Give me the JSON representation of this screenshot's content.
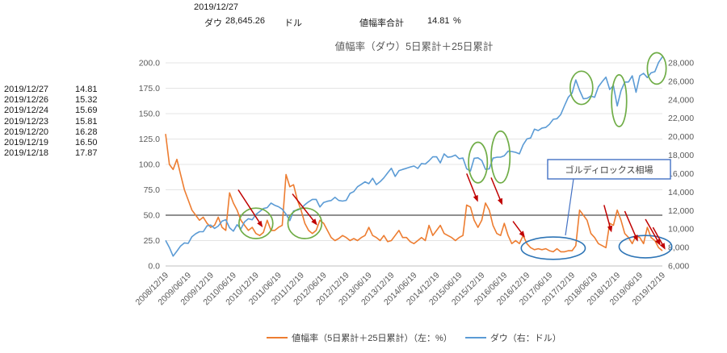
{
  "header": {
    "date": "2019/12/27",
    "dow_label": "ダウ",
    "dow_value": "28,645.26",
    "dow_unit": "ドル",
    "range_total_label": "値幅率合計",
    "range_total_value": "14.81",
    "range_total_unit": "%"
  },
  "recent_values": [
    {
      "date": "2019/12/27",
      "value": "14.81"
    },
    {
      "date": "2019/12/26",
      "value": "15.32"
    },
    {
      "date": "2019/12/24",
      "value": "15.69"
    },
    {
      "date": "2019/12/23",
      "value": "15.81"
    },
    {
      "date": "2019/12/20",
      "value": "16.28"
    },
    {
      "date": "2019/12/19",
      "value": "16.50"
    },
    {
      "date": "2019/12/18",
      "value": "17.87"
    }
  ],
  "chart_data": {
    "type": "line",
    "title": "値幅率（ダウ）5日累計＋25日累計",
    "x_tick_labels": [
      "2008/12/19",
      "2009/06/19",
      "2009/12/19",
      "2010/06/19",
      "2010/12/19",
      "2011/06/19",
      "2011/12/19",
      "2012/06/19",
      "2012/12/19",
      "2013/06/19",
      "2013/12/19",
      "2014/06/19",
      "2014/12/19",
      "2015/06/19",
      "2015/12/19",
      "2016/06/19",
      "2016/12/19",
      "2017/06/19",
      "2017/12/19",
      "2018/06/19",
      "2018/12/19",
      "2019/06/19",
      "2019/12/19"
    ],
    "points_per_tick": 6,
    "left_axis": {
      "min": 0,
      "max": 200,
      "step": 25
    },
    "right_axis": {
      "min": 6000,
      "max": 28000,
      "step": 2000
    },
    "reference_line_left": 50,
    "series": [
      {
        "name": "値幅率（5日累計＋25日累計）（左：%）",
        "axis": "left",
        "color": "#ED7D31",
        "values": [
          130,
          100,
          95,
          105,
          90,
          75,
          65,
          55,
          50,
          45,
          48,
          42,
          38,
          40,
          48,
          38,
          35,
          72,
          62,
          55,
          45,
          40,
          35,
          38,
          32,
          30,
          33,
          45,
          35,
          35,
          38,
          40,
          90,
          78,
          80,
          65,
          55,
          42,
          35,
          32,
          35,
          45,
          42,
          35,
          28,
          25,
          27,
          30,
          28,
          25,
          27,
          25,
          28,
          30,
          38,
          30,
          28,
          25,
          30,
          24,
          25,
          30,
          35,
          28,
          28,
          24,
          22,
          25,
          28,
          25,
          40,
          30,
          35,
          40,
          32,
          30,
          28,
          25,
          28,
          30,
          60,
          58,
          45,
          38,
          45,
          62,
          55,
          40,
          32,
          30,
          42,
          30,
          22,
          25,
          22,
          30,
          22,
          18,
          16,
          17,
          16,
          17,
          15,
          14,
          17,
          14,
          14,
          15,
          15,
          20,
          55,
          50,
          45,
          32,
          28,
          22,
          20,
          18,
          42,
          40,
          55,
          45,
          32,
          28,
          22,
          30,
          28,
          22,
          38,
          28,
          25,
          18,
          15
        ]
      },
      {
        "name": "ダウ（右：ドル）",
        "axis": "right",
        "color": "#5B9BD5",
        "values": [
          8776,
          8001,
          7063,
          7609,
          8168,
          8500,
          8447,
          9172,
          9496,
          9712,
          9713,
          10345,
          10428,
          10067,
          10325,
          10857,
          11009,
          10137,
          9774,
          10466,
          10015,
          10788,
          11118,
          11006,
          11578,
          11892,
          12226,
          12320,
          12811,
          12570,
          12414,
          12143,
          11614,
          10913,
          11955,
          12046,
          12218,
          12633,
          12952,
          13212,
          13214,
          12393,
          12880,
          13009,
          13091,
          13437,
          13096,
          13026,
          13104,
          13861,
          14054,
          14579,
          14840,
          15116,
          14910,
          15500,
          14810,
          15130,
          15546,
          16086,
          16577,
          15699,
          16322,
          16458,
          16581,
          16717,
          16827,
          16563,
          17098,
          17043,
          17391,
          17828,
          17823,
          17165,
          18133,
          17776,
          17841,
          18011,
          17620,
          17690,
          16528,
          16285,
          17664,
          17720,
          17425,
          16466,
          16517,
          17685,
          17774,
          17787,
          17930,
          18432,
          18401,
          18308,
          18142,
          19124,
          19763,
          19864,
          20812,
          20663,
          20941,
          21009,
          21350,
          21891,
          21948,
          22405,
          23377,
          24272,
          24719,
          26149,
          25029,
          24103,
          24163,
          24416,
          24271,
          25415,
          25965,
          26458,
          25116,
          25538,
          23327,
          25000,
          25916,
          25929,
          26593,
          24815,
          26600,
          26864,
          26403,
          26917,
          27046,
          28051,
          28645
        ]
      }
    ],
    "annotations": {
      "green_ellipse_color": "#70AD47",
      "blue_ellipse_color": "#2E75B6",
      "arrow_color": "#C00000",
      "green_ellipses": [
        {
          "cx": 24,
          "cy": 42,
          "rx": 4.5,
          "ry": 15,
          "axis": "left"
        },
        {
          "cx": 37,
          "cy": 42,
          "rx": 4.5,
          "ry": 15,
          "axis": "left"
        },
        {
          "cx": 83,
          "cy": 17200,
          "rx": 2.5,
          "ry": 2200,
          "axis": "right"
        },
        {
          "cx": 89,
          "cy": 17800,
          "rx": 2.5,
          "ry": 2800,
          "axis": "right"
        },
        {
          "cx": 110.5,
          "cy": 25300,
          "rx": 3,
          "ry": 1800,
          "axis": "right"
        },
        {
          "cx": 120.5,
          "cy": 23900,
          "rx": 2,
          "ry": 2800,
          "axis": "right"
        },
        {
          "cx": 130.5,
          "cy": 27400,
          "rx": 2.5,
          "ry": 1700,
          "axis": "right"
        }
      ],
      "blue_ellipses": [
        {
          "cx": 103,
          "cy": 17.5,
          "rx": 8.5,
          "ry": 11,
          "axis": "left"
        },
        {
          "cx": 127.5,
          "cy": 19,
          "rx": 7,
          "ry": 11,
          "axis": "left"
        }
      ],
      "red_arrows": [
        {
          "x1": 19.3,
          "y1": 75,
          "x2": 25.8,
          "y2": 38
        },
        {
          "x1": 33.7,
          "y1": 71,
          "x2": 40.3,
          "y2": 40
        },
        {
          "x1": 80,
          "y1": 91,
          "x2": 83,
          "y2": 63
        },
        {
          "x1": 86.5,
          "y1": 87,
          "x2": 89.5,
          "y2": 60
        },
        {
          "x1": 92.3,
          "y1": 44,
          "x2": 95.5,
          "y2": 28
        },
        {
          "x1": 116.5,
          "y1": 60,
          "x2": 118.5,
          "y2": 33
        },
        {
          "x1": 122,
          "y1": 54,
          "x2": 125.5,
          "y2": 24
        },
        {
          "x1": 127.5,
          "y1": 46,
          "x2": 131.5,
          "y2": 20
        },
        {
          "x1": 129.5,
          "y1": 38,
          "x2": 132.8,
          "y2": 16
        }
      ],
      "goldilocks_label": "ゴルディロックス相場"
    }
  }
}
